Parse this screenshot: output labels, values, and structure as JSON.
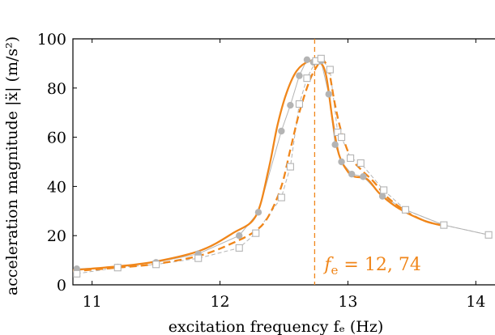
{
  "chart_data": {
    "type": "line",
    "xlabel": "excitation frequency f_e (Hz)",
    "ylabel": "acceleration magnitude |ẍ| (m/s²)",
    "xlim": [
      10.85,
      14.15
    ],
    "ylim": [
      0,
      100
    ],
    "x_ticks": [
      {
        "value": 11,
        "label": "11"
      },
      {
        "value": 12,
        "label": "12"
      },
      {
        "value": 13,
        "label": "13"
      },
      {
        "value": 14,
        "label": "14"
      }
    ],
    "y_ticks": [
      {
        "value": 0,
        "label": "0"
      },
      {
        "value": 20,
        "label": "20"
      },
      {
        "value": 40,
        "label": "40"
      },
      {
        "value": 60,
        "label": "60"
      },
      {
        "value": 80,
        "label": "80"
      },
      {
        "value": 100,
        "label": "100"
      }
    ],
    "annotation": {
      "text": "f_e = 12, 74",
      "x": 12.74
    },
    "colors": {
      "orange": "#f0861a",
      "gray": "#b4b4b4",
      "frame": "#000000"
    },
    "series": [
      {
        "style": "orange-solid",
        "x": [
          10.85,
          11.2,
          11.5,
          11.85,
          12.1,
          12.28,
          12.38,
          12.45,
          12.52,
          12.6,
          12.7,
          12.78,
          12.83,
          12.88,
          12.93,
          13.0,
          13.05,
          13.15,
          13.25,
          13.4,
          13.6,
          13.75
        ],
        "y": [
          6,
          7.5,
          9.5,
          14,
          21,
          28,
          47,
          65,
          78,
          87,
          91,
          90.5,
          85,
          67,
          53,
          46,
          44,
          43,
          37,
          31,
          26,
          24
        ]
      },
      {
        "style": "orange-dashed",
        "x": [
          10.85,
          11.2,
          11.5,
          11.85,
          12.1,
          12.28,
          12.38,
          12.48,
          12.55,
          12.62,
          12.7,
          12.76,
          12.8,
          12.85,
          12.9,
          12.95,
          13.02,
          13.1,
          13.2,
          13.3,
          13.45,
          13.6,
          13.75
        ],
        "y": [
          5.5,
          7,
          8.5,
          12,
          17,
          22,
          28,
          40,
          55,
          70,
          83,
          89,
          91.5,
          87,
          73,
          62,
          52,
          47,
          42,
          36,
          30,
          26,
          24
        ]
      },
      {
        "style": "gray-solid-circles",
        "x": [
          10.88,
          11.2,
          11.5,
          11.83,
          12.15,
          12.3,
          12.48,
          12.55,
          12.62,
          12.68,
          12.73,
          12.79,
          12.85,
          12.9,
          12.95,
          13.03,
          13.12,
          13.27,
          13.45,
          13.75,
          14.1
        ],
        "y": [
          6.5,
          7.2,
          9.1,
          12.6,
          20,
          29.5,
          62.5,
          73,
          85,
          91.5,
          90.5,
          91,
          77.5,
          57,
          50,
          45,
          44,
          36,
          30.5,
          24.3,
          20.3
        ]
      },
      {
        "style": "gray-dashed-squares",
        "x": [
          10.88,
          11.2,
          11.5,
          11.83,
          12.15,
          12.28,
          12.48,
          12.55,
          12.62,
          12.68,
          12.75,
          12.79,
          12.86,
          12.92,
          12.95,
          13.02,
          13.1,
          13.28,
          13.45,
          13.75,
          14.1
        ],
        "y": [
          4.5,
          7,
          8.3,
          10.8,
          15,
          21,
          35.5,
          48,
          73.5,
          84,
          91,
          92,
          87.5,
          62,
          60,
          51.5,
          49.5,
          38.5,
          30.5,
          24.3,
          20.3
        ]
      }
    ]
  }
}
